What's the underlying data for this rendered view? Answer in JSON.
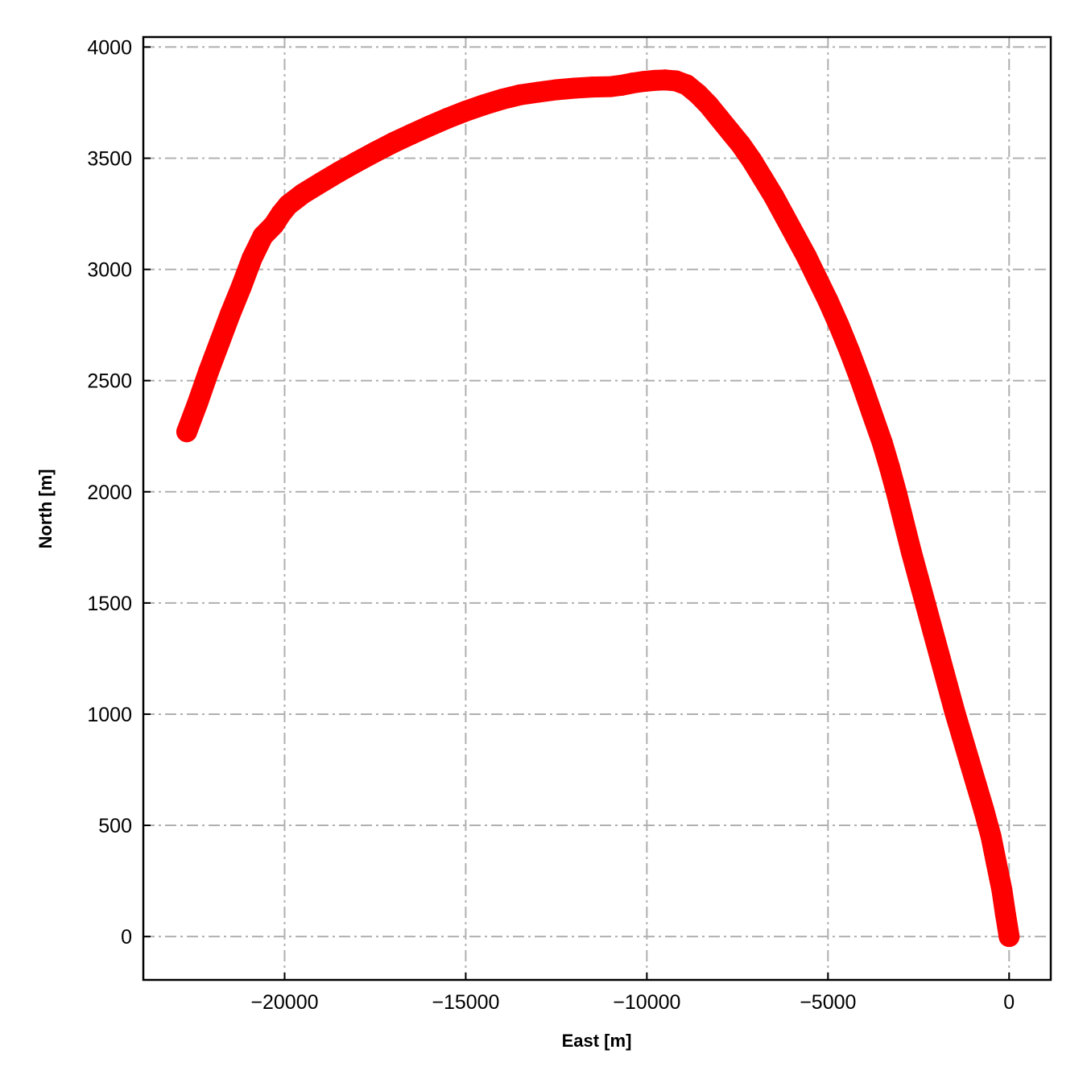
{
  "chart_data": {
    "type": "scatter",
    "title": "",
    "xlabel": "East [m]",
    "ylabel": "North [m]",
    "xlim": [
      -23900,
      1150
    ],
    "ylim": [
      -195,
      4045
    ],
    "x_ticks": [
      -20000,
      -15000,
      -10000,
      -5000,
      0
    ],
    "x_tick_labels": [
      "−20000",
      "−15000",
      "−10000",
      "−5000",
      "0"
    ],
    "y_ticks": [
      0,
      500,
      1000,
      1500,
      2000,
      2500,
      3000,
      3500,
      4000
    ],
    "y_tick_labels": [
      "0",
      "500",
      "1000",
      "1500",
      "2000",
      "2500",
      "3000",
      "3500",
      "4000"
    ],
    "grid": true,
    "colors": {
      "series": "#ff0000",
      "grid": "#b0b0b0",
      "axes": "#000000"
    },
    "series": [
      {
        "x": [
          0,
          -100,
          -200,
          -350,
          -500,
          -700,
          -900,
          -1100,
          -1300,
          -1500,
          -1700,
          -1900,
          -2100,
          -2300,
          -2500,
          -2700,
          -2900,
          -3100,
          -3300,
          -3500,
          -3800,
          -4100,
          -4400,
          -4700,
          -5000,
          -5300,
          -5600,
          -5900,
          -6200,
          -6500,
          -6800,
          -7100,
          -7400,
          -7700,
          -8000,
          -8300,
          -8600,
          -8900,
          -9200,
          -9500,
          -9800,
          -10100,
          -10400,
          -10700,
          -11000,
          -11500,
          -12000,
          -12500,
          -13000,
          -13500,
          -14000,
          -14500,
          -15000,
          -15500,
          -16000,
          -16500,
          -17000,
          -17500,
          -18000,
          -18500,
          -19000,
          -19500,
          -19900,
          -20100,
          -20300,
          -20600,
          -20900,
          -21200,
          -21500,
          -21800,
          -22100,
          -22400,
          -22700
        ],
        "y": [
          0,
          100,
          210,
          330,
          450,
          570,
          680,
          790,
          900,
          1010,
          1130,
          1250,
          1370,
          1490,
          1610,
          1730,
          1860,
          1990,
          2110,
          2220,
          2360,
          2500,
          2630,
          2750,
          2860,
          2960,
          3060,
          3150,
          3240,
          3330,
          3410,
          3490,
          3560,
          3620,
          3680,
          3740,
          3790,
          3830,
          3848,
          3852,
          3850,
          3845,
          3838,
          3828,
          3822,
          3820,
          3815,
          3808,
          3797,
          3785,
          3765,
          3740,
          3712,
          3680,
          3645,
          3608,
          3570,
          3528,
          3484,
          3438,
          3390,
          3340,
          3290,
          3250,
          3200,
          3150,
          3050,
          2920,
          2800,
          2670,
          2540,
          2400,
          2270
        ]
      }
    ]
  }
}
